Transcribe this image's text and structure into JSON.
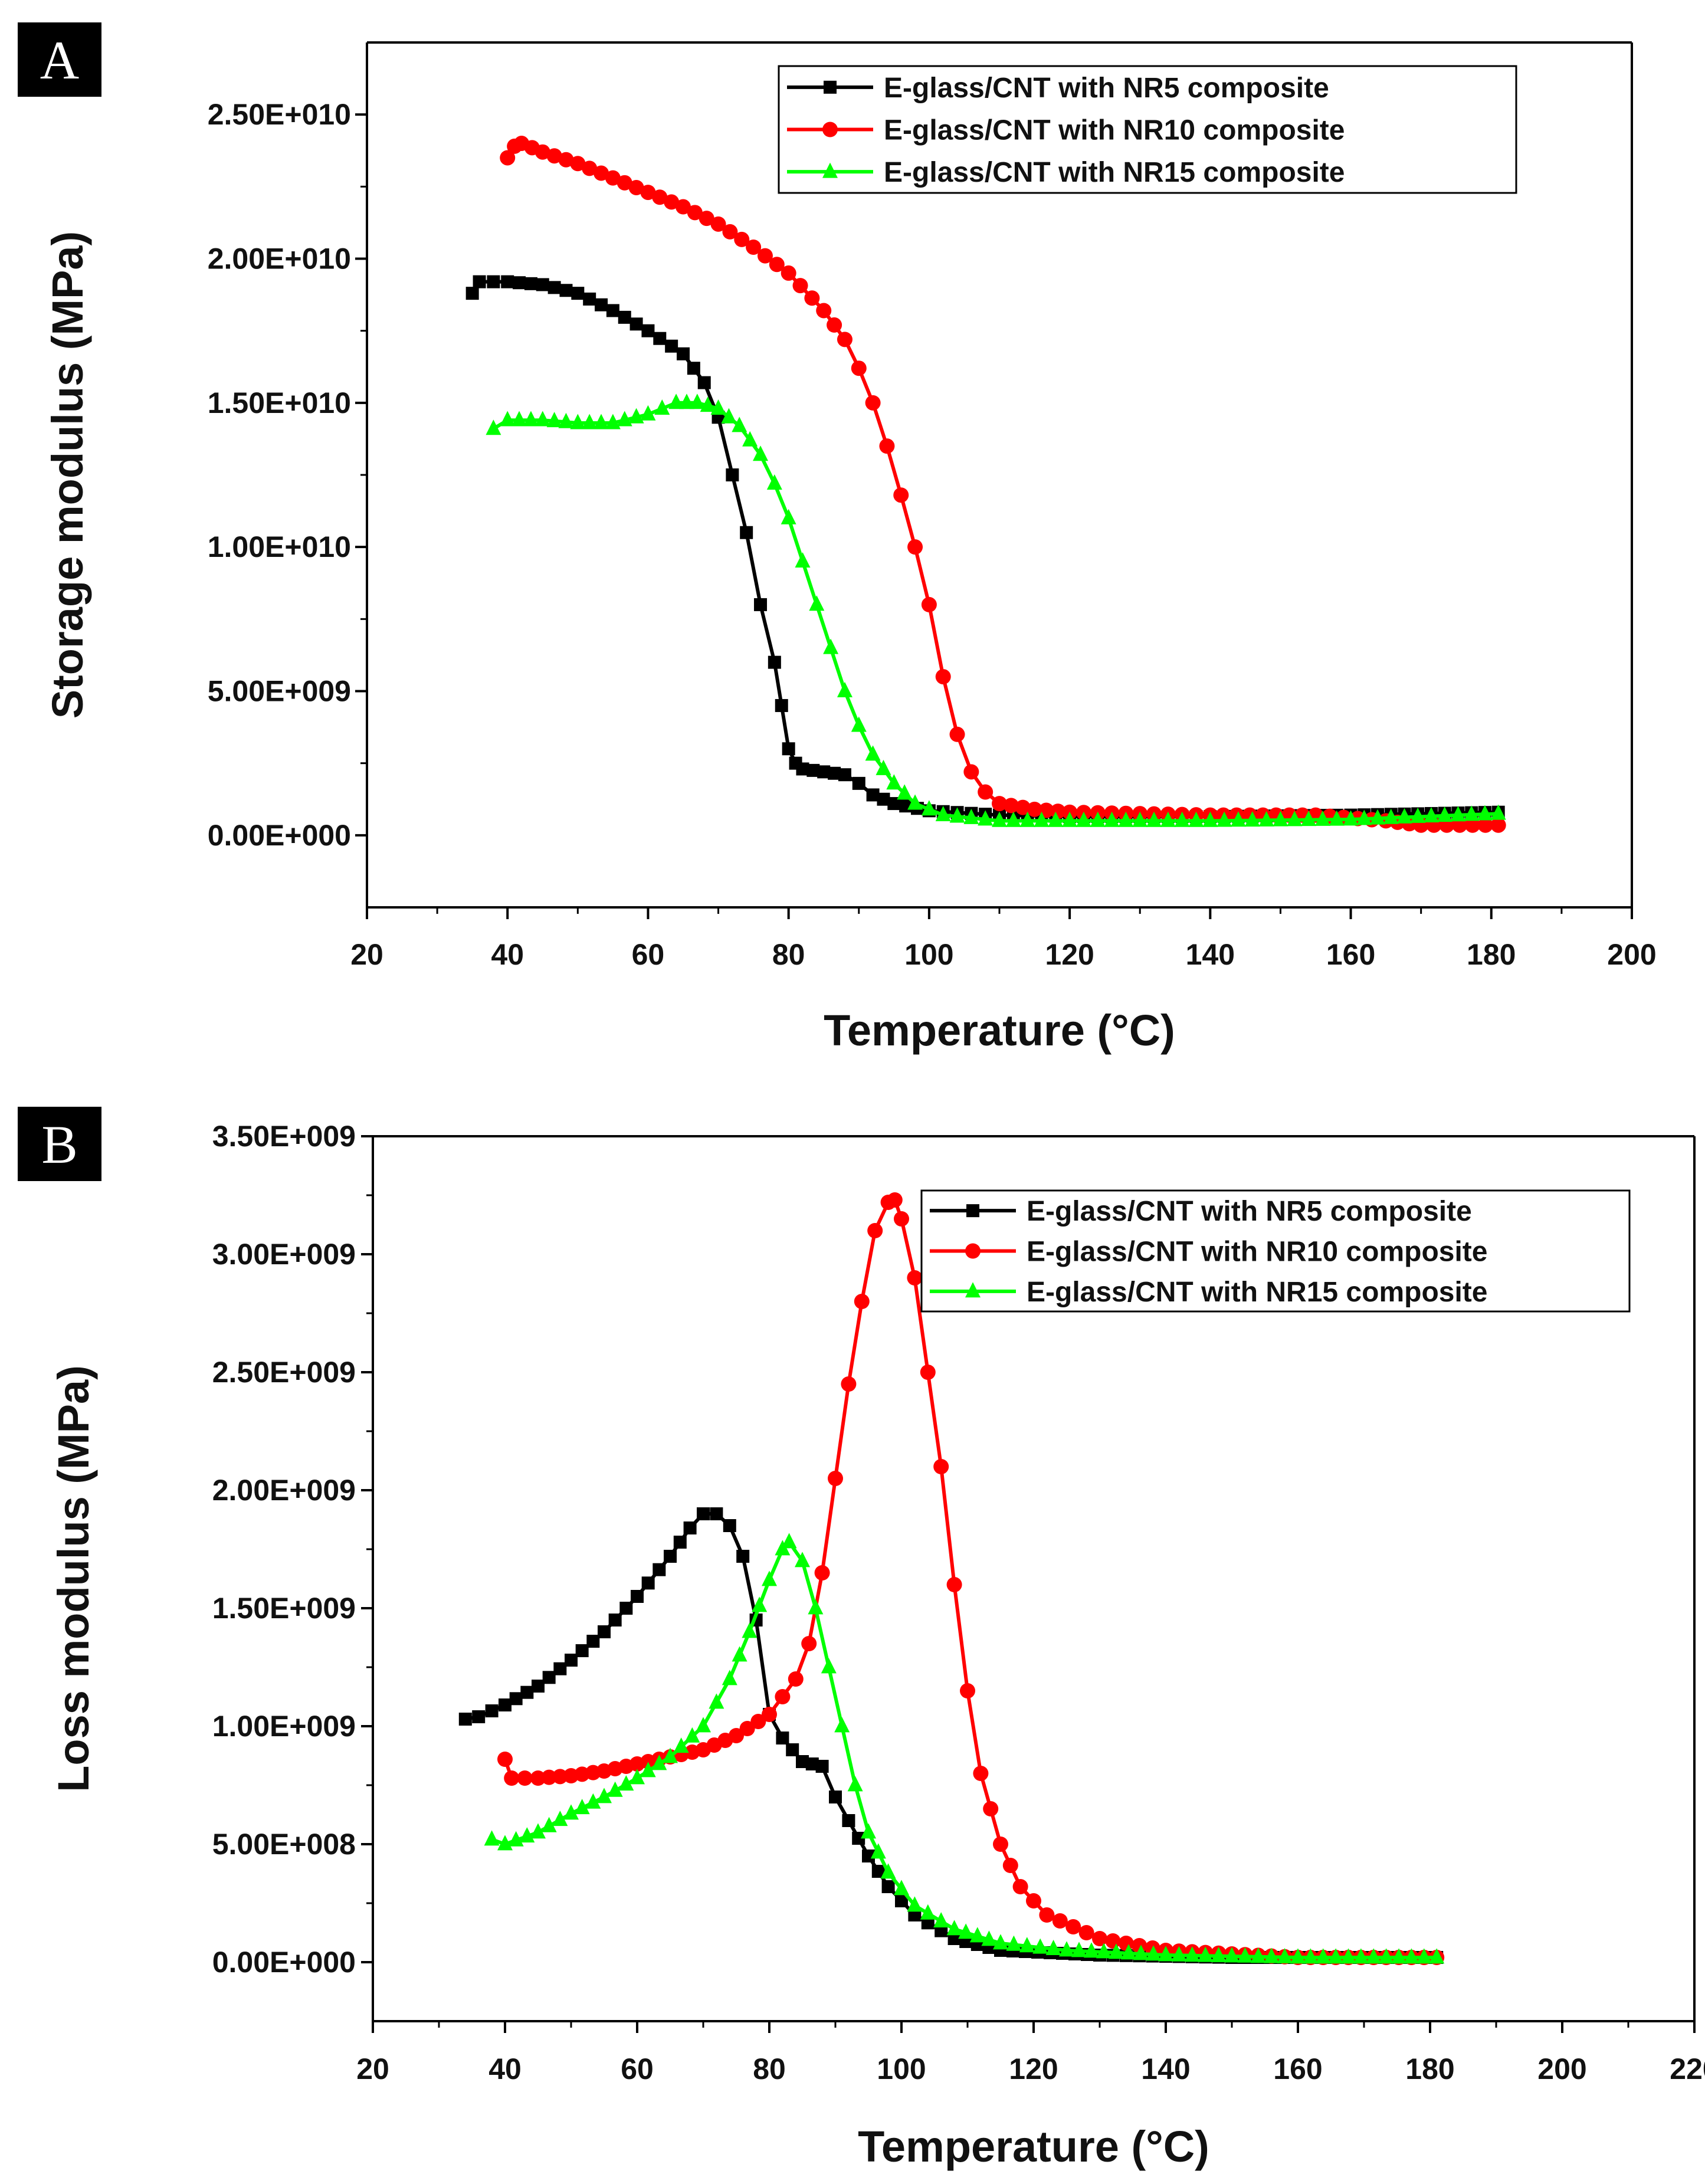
{
  "chart_data": [
    {
      "type": "scatter",
      "panel_label": "A",
      "title": "",
      "xlabel": "Temperature (°C)",
      "ylabel": "Storage modulus (MPa)",
      "xlim": [
        20,
        200
      ],
      "ylim": [
        -2500000000.0,
        27500000000.0
      ],
      "xticks": [
        20,
        40,
        60,
        80,
        100,
        120,
        140,
        160,
        180,
        200
      ],
      "xtick_labels": [
        "20",
        "40",
        "60",
        "80",
        "100",
        "120",
        "140",
        "160",
        "180",
        "200"
      ],
      "yticks": [
        0,
        5000000000.0,
        10000000000.0,
        15000000000.0,
        20000000000.0,
        25000000000.0
      ],
      "ytick_labels": [
        "0.00E+000",
        "5.00E+009",
        "1.00E+010",
        "1.50E+010",
        "2.00E+010",
        "2.50E+010"
      ],
      "grid": false,
      "legend_position": "top-right",
      "series": [
        {
          "name": "E-glass/CNT with NR5 composite",
          "color": "#000000",
          "marker": "square",
          "points": [
            [
              35,
              18800000000.0
            ],
            [
              36,
              19200000000.0
            ],
            [
              40,
              19200000000.0
            ],
            [
              45,
              19100000000.0
            ],
            [
              50,
              18800000000.0
            ],
            [
              55,
              18200000000.0
            ],
            [
              60,
              17500000000.0
            ],
            [
              65,
              16700000000.0
            ],
            [
              68,
              15700000000.0
            ],
            [
              70,
              14500000000.0
            ],
            [
              72,
              12500000000.0
            ],
            [
              74,
              10500000000.0
            ],
            [
              76,
              8000000000.0
            ],
            [
              78,
              6000000000.0
            ],
            [
              79,
              4500000000.0
            ],
            [
              80,
              3000000000.0
            ],
            [
              81,
              2500000000.0
            ],
            [
              82,
              2300000000.0
            ],
            [
              85,
              2200000000.0
            ],
            [
              88,
              2100000000.0
            ],
            [
              90,
              1800000000.0
            ],
            [
              92,
              1400000000.0
            ],
            [
              95,
              1100000000.0
            ],
            [
              100,
              850000000.0
            ],
            [
              110,
              700000000.0
            ],
            [
              120,
              650000000.0
            ],
            [
              140,
              650000000.0
            ],
            [
              160,
              700000000.0
            ],
            [
              181,
              800000000.0
            ]
          ]
        },
        {
          "name": "E-glass/CNT with NR10 composite",
          "color": "#ff0000",
          "marker": "circle",
          "points": [
            [
              40,
              23500000000.0
            ],
            [
              41,
              23900000000.0
            ],
            [
              42,
              24000000000.0
            ],
            [
              45,
              23700000000.0
            ],
            [
              50,
              23300000000.0
            ],
            [
              55,
              22800000000.0
            ],
            [
              60,
              22300000000.0
            ],
            [
              65,
              21800000000.0
            ],
            [
              70,
              21200000000.0
            ],
            [
              75,
              20400000000.0
            ],
            [
              80,
              19500000000.0
            ],
            [
              85,
              18200000000.0
            ],
            [
              88,
              17200000000.0
            ],
            [
              90,
              16200000000.0
            ],
            [
              92,
              15000000000.0
            ],
            [
              94,
              13500000000.0
            ],
            [
              96,
              11800000000.0
            ],
            [
              98,
              10000000000.0
            ],
            [
              100,
              8000000000.0
            ],
            [
              102,
              5500000000.0
            ],
            [
              104,
              3500000000.0
            ],
            [
              106,
              2200000000.0
            ],
            [
              108,
              1500000000.0
            ],
            [
              110,
              1100000000.0
            ],
            [
              115,
              900000000.0
            ],
            [
              120,
              800000000.0
            ],
            [
              130,
              750000000.0
            ],
            [
              140,
              700000000.0
            ],
            [
              155,
              700000000.0
            ],
            [
              165,
              500000000.0
            ],
            [
              170,
              350000000.0
            ],
            [
              181,
              350000000.0
            ]
          ]
        },
        {
          "name": "E-glass/CNT with NR15 composite",
          "color": "#00ff00",
          "marker": "triangle",
          "points": [
            [
              38,
              14100000000.0
            ],
            [
              40,
              14400000000.0
            ],
            [
              45,
              14400000000.0
            ],
            [
              50,
              14300000000.0
            ],
            [
              55,
              14300000000.0
            ],
            [
              60,
              14600000000.0
            ],
            [
              64,
              15000000000.0
            ],
            [
              67,
              15000000000.0
            ],
            [
              70,
              14800000000.0
            ],
            [
              73,
              14200000000.0
            ],
            [
              76,
              13200000000.0
            ],
            [
              78,
              12200000000.0
            ],
            [
              80,
              11000000000.0
            ],
            [
              82,
              9500000000.0
            ],
            [
              84,
              8000000000.0
            ],
            [
              86,
              6500000000.0
            ],
            [
              88,
              5000000000.0
            ],
            [
              90,
              3800000000.0
            ],
            [
              92,
              2800000000.0
            ],
            [
              95,
              1800000000.0
            ],
            [
              98,
              1100000000.0
            ],
            [
              102,
              700000000.0
            ],
            [
              110,
              500000000.0
            ],
            [
              120,
              500000000.0
            ],
            [
              140,
              500000000.0
            ],
            [
              160,
              550000000.0
            ],
            [
              181,
              750000000.0
            ]
          ]
        }
      ]
    },
    {
      "type": "scatter",
      "panel_label": "B",
      "title": "",
      "xlabel": "Temperature (°C)",
      "ylabel": "Loss modulus (MPa)",
      "xlim": [
        20,
        220
      ],
      "ylim": [
        -250000000.0,
        3500000000.0
      ],
      "xticks": [
        20,
        40,
        60,
        80,
        100,
        120,
        140,
        160,
        180,
        200,
        220
      ],
      "xtick_labels": [
        "20",
        "40",
        "60",
        "80",
        "100",
        "120",
        "140",
        "160",
        "180",
        "200",
        "220"
      ],
      "yticks": [
        0,
        500000000.0,
        1000000000.0,
        1500000000.0,
        2000000000.0,
        2500000000.0,
        3000000000.0,
        3500000000.0
      ],
      "ytick_labels": [
        "0.00E+000",
        "5.00E+008",
        "1.00E+009",
        "1.50E+009",
        "2.00E+009",
        "2.50E+009",
        "3.00E+009",
        "3.50E+009"
      ],
      "grid": false,
      "legend_position": "top-right",
      "series": [
        {
          "name": "E-glass/CNT with NR5 composite",
          "color": "#000000",
          "marker": "square",
          "points": [
            [
              34,
              1030000000.0
            ],
            [
              36,
              1040000000.0
            ],
            [
              40,
              1090000000.0
            ],
            [
              45,
              1170000000.0
            ],
            [
              50,
              1280000000.0
            ],
            [
              55,
              1400000000.0
            ],
            [
              60,
              1550000000.0
            ],
            [
              65,
              1720000000.0
            ],
            [
              68,
              1840000000.0
            ],
            [
              70,
              1900000000.0
            ],
            [
              72,
              1900000000.0
            ],
            [
              74,
              1850000000.0
            ],
            [
              76,
              1720000000.0
            ],
            [
              78,
              1450000000.0
            ],
            [
              80,
              1050000000.0
            ],
            [
              82,
              950000000.0
            ],
            [
              85,
              850000000.0
            ],
            [
              88,
              830000000.0
            ],
            [
              90,
              700000000.0
            ],
            [
              92,
              600000000.0
            ],
            [
              95,
              450000000.0
            ],
            [
              98,
              320000000.0
            ],
            [
              102,
              200000000.0
            ],
            [
              108,
              100000000.0
            ],
            [
              115,
              50000000.0
            ],
            [
              130,
              30000000.0
            ],
            [
              150,
              20000000.0
            ],
            [
              181,
              20000000.0
            ]
          ]
        },
        {
          "name": "E-glass/CNT with NR10 composite",
          "color": "#ff0000",
          "marker": "circle",
          "points": [
            [
              40,
              860000000.0
            ],
            [
              41,
              780000000.0
            ],
            [
              45,
              780000000.0
            ],
            [
              50,
              790000000.0
            ],
            [
              55,
              810000000.0
            ],
            [
              60,
              840000000.0
            ],
            [
              65,
              870000000.0
            ],
            [
              70,
              900000000.0
            ],
            [
              75,
              960000000.0
            ],
            [
              80,
              1050000000.0
            ],
            [
              84,
              1200000000.0
            ],
            [
              86,
              1350000000.0
            ],
            [
              88,
              1650000000.0
            ],
            [
              90,
              2050000000.0
            ],
            [
              92,
              2450000000.0
            ],
            [
              94,
              2800000000.0
            ],
            [
              96,
              3100000000.0
            ],
            [
              98,
              3220000000.0
            ],
            [
              99,
              3230000000.0
            ],
            [
              100,
              3150000000.0
            ],
            [
              102,
              2900000000.0
            ],
            [
              104,
              2500000000.0
            ],
            [
              106,
              2100000000.0
            ],
            [
              108,
              1600000000.0
            ],
            [
              110,
              1150000000.0
            ],
            [
              112,
              800000000.0
            ],
            [
              115,
              500000000.0
            ],
            [
              118,
              320000000.0
            ],
            [
              122,
              200000000.0
            ],
            [
              130,
              100000000.0
            ],
            [
              140,
              50000000.0
            ],
            [
              160,
              20000000.0
            ],
            [
              181,
              20000000.0
            ]
          ]
        },
        {
          "name": "E-glass/CNT with NR15 composite",
          "color": "#00ff00",
          "marker": "triangle",
          "points": [
            [
              38,
              520000000.0
            ],
            [
              40,
              500000000.0
            ],
            [
              45,
              550000000.0
            ],
            [
              50,
              630000000.0
            ],
            [
              55,
              700000000.0
            ],
            [
              60,
              780000000.0
            ],
            [
              65,
              870000000.0
            ],
            [
              70,
              1000000000.0
            ],
            [
              74,
              1200000000.0
            ],
            [
              77,
              1400000000.0
            ],
            [
              80,
              1620000000.0
            ],
            [
              82,
              1750000000.0
            ],
            [
              83,
              1780000000.0
            ],
            [
              85,
              1700000000.0
            ],
            [
              87,
              1500000000.0
            ],
            [
              89,
              1250000000.0
            ],
            [
              91,
              1000000000.0
            ],
            [
              93,
              750000000.0
            ],
            [
              95,
              550000000.0
            ],
            [
              98,
              380000000.0
            ],
            [
              102,
              240000000.0
            ],
            [
              108,
              140000000.0
            ],
            [
              115,
              80000000.0
            ],
            [
              125,
              50000000.0
            ],
            [
              140,
              30000000.0
            ],
            [
              160,
              20000000.0
            ],
            [
              181,
              20000000.0
            ]
          ]
        }
      ]
    }
  ]
}
